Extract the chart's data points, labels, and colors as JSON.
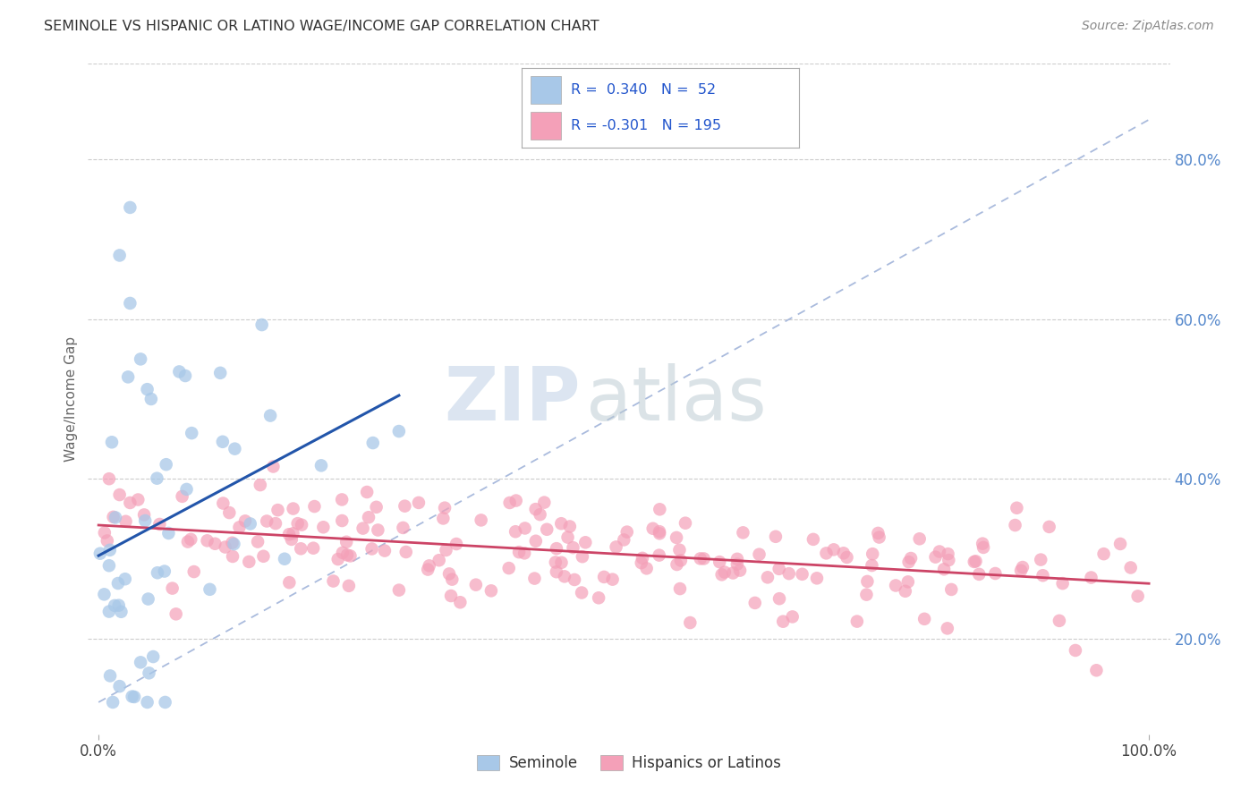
{
  "title": "SEMINOLE VS HISPANIC OR LATINO WAGE/INCOME GAP CORRELATION CHART",
  "source": "Source: ZipAtlas.com",
  "ylabel": "Wage/Income Gap",
  "seminole_color": "#a8c8e8",
  "hispanic_color": "#f4a0b8",
  "trendline_seminole": "#2255aa",
  "trendline_hispanic": "#cc4466",
  "diagonal_color": "#aabbdd",
  "background": "#ffffff",
  "grid_color": "#cccccc",
  "right_tick_color": "#5588cc",
  "title_color": "#333333",
  "source_color": "#888888",
  "ylabel_color": "#666666",
  "xtick_color": "#444444",
  "ylim_low": 0.08,
  "ylim_high": 0.92,
  "xlim_low": -0.01,
  "xlim_high": 1.02,
  "right_ytick_vals": [
    0.2,
    0.4,
    0.6,
    0.8
  ],
  "right_ytick_labels": [
    "20.0%",
    "40.0%",
    "60.0%",
    "80.0%"
  ],
  "watermark_zip_color": "#c8d8ea",
  "watermark_atlas_color": "#b8c8d8",
  "legend_r1_text": "R =  0.340   N =  52",
  "legend_r2_text": "R = -0.301   N = 195",
  "legend_text_color": "#2255cc"
}
